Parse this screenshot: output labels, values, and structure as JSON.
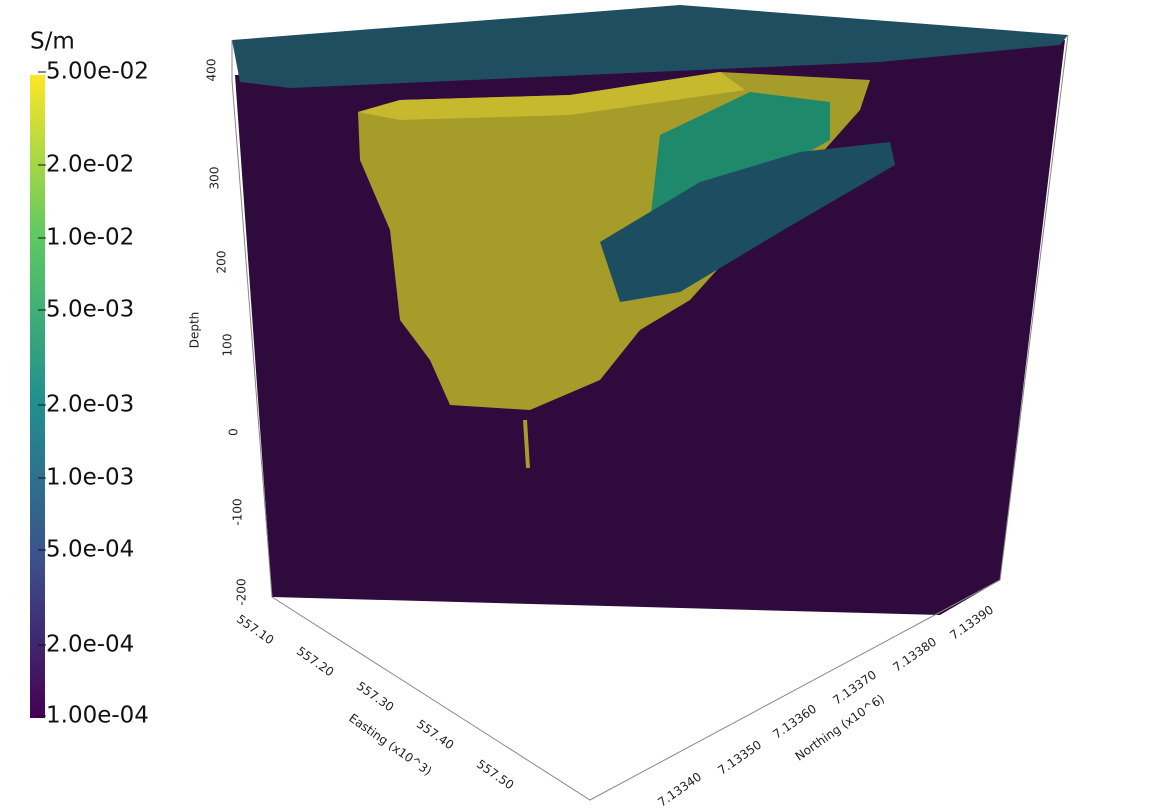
{
  "colorbar": {
    "title": "S/m",
    "labels": [
      "5.00e-02",
      "2.0e-02",
      "1.0e-02",
      "5.0e-03",
      "2.0e-03",
      "1.0e-03",
      "5.0e-04",
      "2.0e-04",
      "1.00e-04"
    ]
  },
  "depth_axis": {
    "title": "Depth",
    "labels": [
      "400",
      "300",
      "200",
      "100",
      "0",
      "-100",
      "-200"
    ]
  },
  "easting_axis": {
    "title": "Easting (x10^3)",
    "labels": [
      "557.10",
      "557.20",
      "557.30",
      "557.40",
      "557.50"
    ]
  },
  "northing_axis": {
    "title": "Northing (x10^6)",
    "labels": [
      "7.13340",
      "7.13350",
      "7.13360",
      "7.13370",
      "7.13380",
      "7.13390"
    ]
  }
}
